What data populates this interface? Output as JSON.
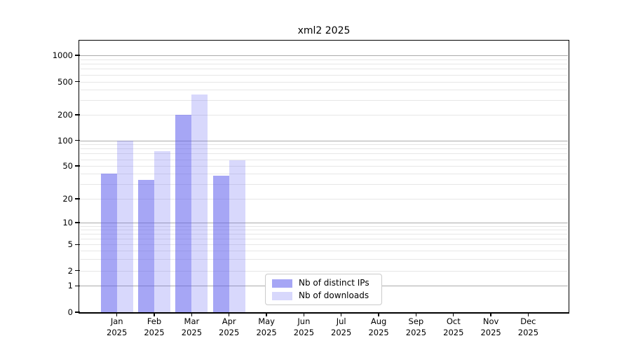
{
  "window": {
    "background": "#ffffff"
  },
  "chart": {
    "title": "xml2 2025",
    "colors": {
      "ips_bar": "rgba(92,92,236,0.55)",
      "downloads_bar": "rgba(105,105,242,0.26)",
      "grid_major": "#ababab",
      "grid_minor": "#e7e7e7",
      "spine": "#000000",
      "text": "#000000",
      "legend_border": "#cbcbcb"
    },
    "legend": {
      "items": [
        {
          "label": "Nb of distinct IPs",
          "series_key": "ips"
        },
        {
          "label": "Nb of downloads",
          "series_key": "downloads"
        }
      ]
    }
  },
  "chart_data": {
    "type": "bar",
    "title": "xml2 2025",
    "categories": [
      "Jan",
      "Feb",
      "Mar",
      "Apr",
      "May",
      "Jun",
      "Jul",
      "Aug",
      "Sep",
      "Oct",
      "Nov",
      "Dec"
    ],
    "x_tick_second_line": "2025",
    "series": [
      {
        "name": "Nb of distinct IPs",
        "key": "ips",
        "values": [
          40,
          34,
          200,
          38,
          0,
          0,
          0,
          0,
          0,
          0,
          0,
          0
        ]
      },
      {
        "name": "Nb of downloads",
        "key": "downloads",
        "values": [
          100,
          75,
          350,
          58,
          0,
          0,
          0,
          0,
          0,
          0,
          0,
          0
        ]
      }
    ],
    "xlabel": "",
    "ylabel": "",
    "yscale": "log",
    "yticks": [
      0,
      1,
      2,
      5,
      10,
      20,
      50,
      100,
      200,
      500,
      1000
    ],
    "ylim": [
      0,
      1400
    ],
    "grid": "horizontal-log-minor",
    "legend_position": "inside-bottom-center"
  }
}
